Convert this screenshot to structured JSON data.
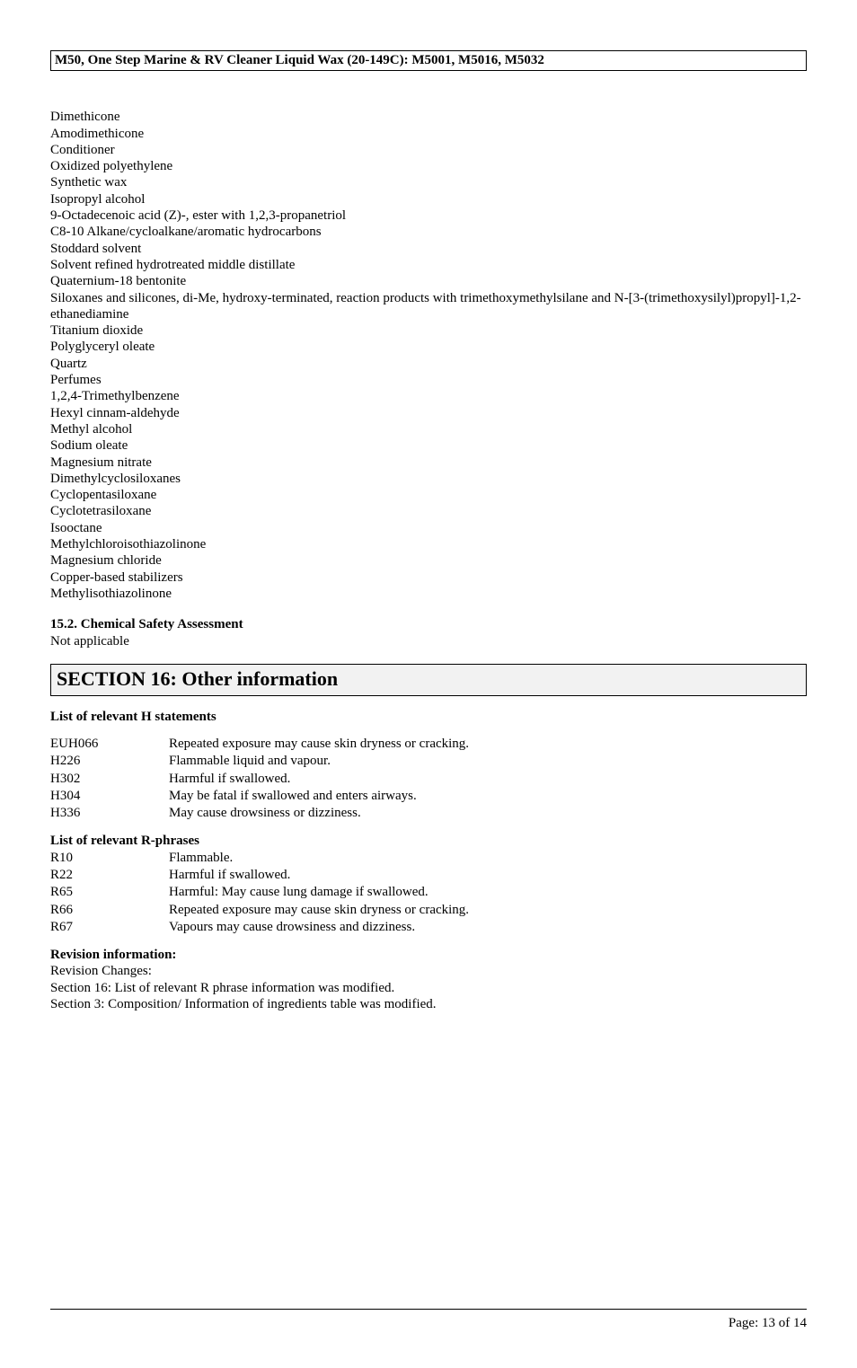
{
  "header": {
    "product_title": "M50, One Step Marine & RV Cleaner Liquid Wax (20-149C): M5001, M5016, M5032"
  },
  "ingredients": [
    "Dimethicone",
    "Amodimethicone",
    "Conditioner",
    "Oxidized polyethylene",
    "Synthetic wax",
    "Isopropyl alcohol",
    "9-Octadecenoic acid (Z)-, ester with 1,2,3-propanetriol",
    "C8-10 Alkane/cycloalkane/aromatic hydrocarbons",
    "Stoddard solvent",
    "Solvent refined hydrotreated middle distillate",
    "Quaternium-18 bentonite",
    "Siloxanes and silicones, di-Me, hydroxy-terminated, reaction products with trimethoxymethylsilane and N-[3-(trimethoxysilyl)propyl]-1,2-ethanediamine",
    "Titanium dioxide",
    "Polyglyceryl oleate",
    "Quartz",
    "Perfumes",
    "1,2,4-Trimethylbenzene",
    "Hexyl cinnam-aldehyde",
    "Methyl alcohol",
    "Sodium oleate",
    "Magnesium nitrate",
    "Dimethylcyclosiloxanes",
    "Cyclopentasiloxane",
    "Cyclotetrasiloxane",
    "Isooctane",
    "Methylchloroisothiazolinone",
    "Magnesium chloride",
    "Copper-based stabilizers",
    "Methylisothiazolinone"
  ],
  "chem_safety": {
    "title": "15.2. Chemical Safety Assessment",
    "value": "Not applicable"
  },
  "section16": {
    "title": "SECTION 16: Other information"
  },
  "h_statements": {
    "title": "List of relevant H statements",
    "rows": [
      {
        "code": "EUH066",
        "text": "Repeated exposure may cause skin dryness or cracking."
      },
      {
        "code": "H226",
        "text": "Flammable liquid and vapour."
      },
      {
        "code": "H302",
        "text": "Harmful if swallowed."
      },
      {
        "code": "H304",
        "text": "May be fatal if swallowed and enters airways."
      },
      {
        "code": "H336",
        "text": "May cause drowsiness or dizziness."
      }
    ]
  },
  "r_phrases": {
    "title": "List of relevant R-phrases",
    "rows": [
      {
        "code": "R10",
        "text": "Flammable."
      },
      {
        "code": "R22",
        "text": "Harmful if swallowed."
      },
      {
        "code": "R65",
        "text": "Harmful: May cause lung damage if swallowed."
      },
      {
        "code": "R66",
        "text": "Repeated exposure may cause skin dryness or cracking."
      },
      {
        "code": "R67",
        "text": "Vapours may cause drowsiness and dizziness."
      }
    ]
  },
  "revision": {
    "title": "Revision information:",
    "lines": [
      "Revision Changes:",
      "Section 16: List of relevant R phrase information was modified.",
      "Section 3: Composition/ Information of ingredients table was modified."
    ]
  },
  "footer": {
    "page": "Page: 13 of  14"
  }
}
